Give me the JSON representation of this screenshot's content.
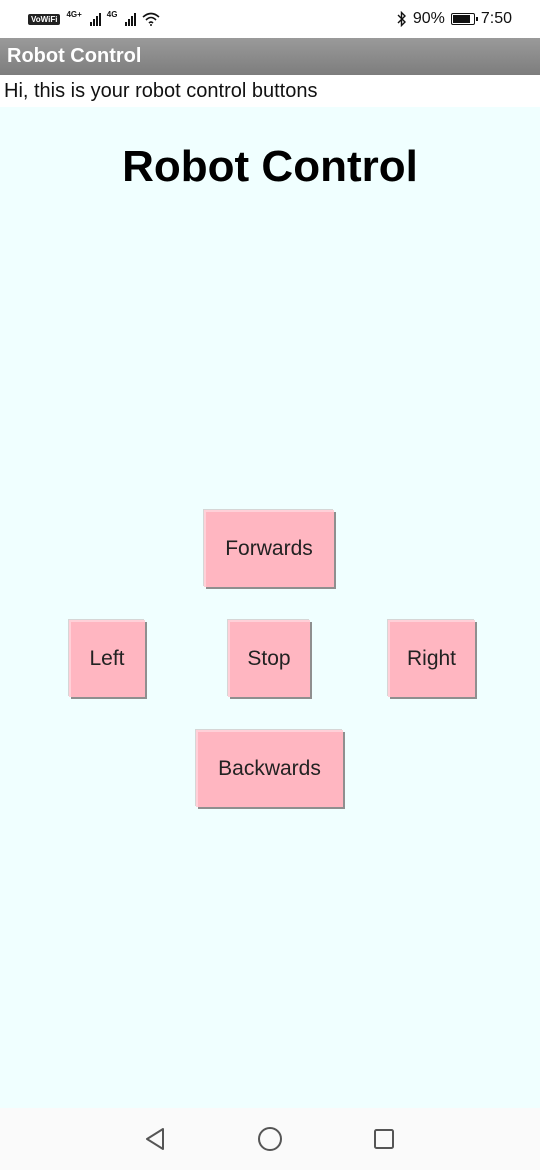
{
  "status_bar": {
    "vowifi_label": "VoWiFi",
    "sim1_network": "4G+",
    "sim2_network": "4G",
    "battery_percent": "90%",
    "battery_level": 0.9,
    "time": "7:50",
    "icons": [
      "bluetooth-icon",
      "battery-icon",
      "wifi-icon",
      "signal-icon"
    ]
  },
  "app_bar": {
    "title": "Robot Control"
  },
  "subtitle": "Hi, this is your robot control buttons",
  "main": {
    "heading": "Robot Control",
    "buttons": {
      "forwards": "Forwards",
      "left": "Left",
      "stop": "Stop",
      "right": "Right",
      "backwards": "Backwards"
    }
  },
  "nav_bar": {
    "icons": [
      "back-icon",
      "home-icon",
      "recents-icon"
    ]
  },
  "colors": {
    "background": "#f0ffff",
    "button": "#ffb6c1",
    "app_bar": "#8a8a8a"
  }
}
